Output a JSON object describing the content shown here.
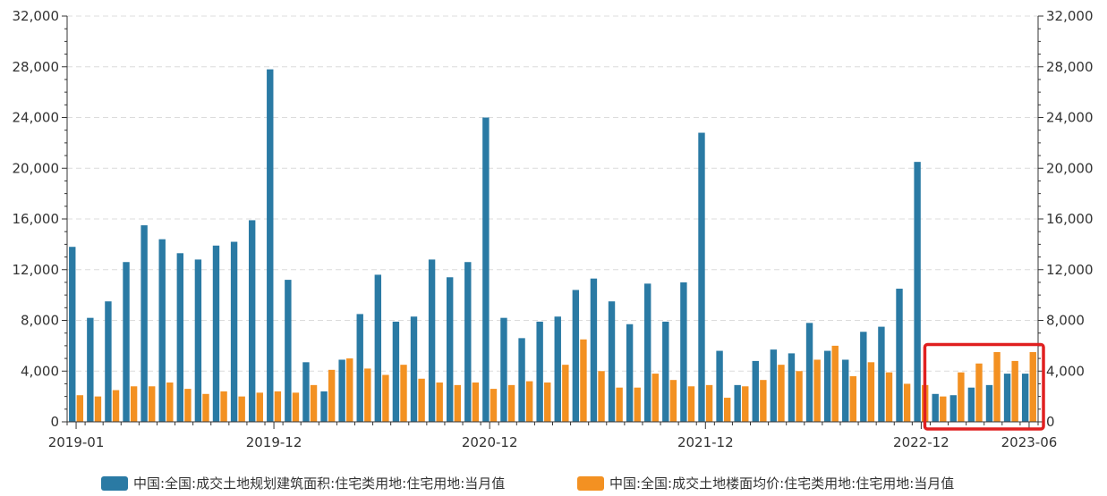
{
  "chart_data": {
    "type": "bar",
    "x_tick_labels": [
      "2019-01",
      "2019-12",
      "2020-12",
      "2021-12",
      "2022-12",
      "2023-06"
    ],
    "y_left_ticks": [
      "0",
      "4,000",
      "8,000",
      "12,000",
      "16,000",
      "20,000",
      "24,000",
      "28,000",
      "32,000"
    ],
    "y_right_ticks": [
      "0",
      "4,000",
      "8,000",
      "12,000",
      "16,000",
      "20,000",
      "24,000",
      "28,000",
      "32,000"
    ],
    "ylim": [
      0,
      32000
    ],
    "grid": true,
    "legend_position": "bottom",
    "series": [
      {
        "name": "中国:全国:成交土地规划建筑面积:住宅类用地:住宅用地:当月值",
        "color": "#2a7aa4",
        "values": [
          13800,
          8200,
          9500,
          12600,
          15500,
          14400,
          13300,
          12800,
          13900,
          14200,
          15900,
          27800,
          11200,
          4700,
          2400,
          4900,
          8500,
          11600,
          7900,
          8300,
          12800,
          11400,
          12600,
          24000,
          8200,
          6600,
          7900,
          8300,
          10400,
          11300,
          9500,
          7700,
          10900,
          7900,
          11000,
          22800,
          5600,
          2900,
          4800,
          5700,
          5400,
          7800,
          5600,
          4900,
          7100,
          7500,
          10500,
          20500,
          2200,
          2100,
          2700,
          2900,
          3800,
          3800
        ]
      },
      {
        "name": "中国:全国:成交土地楼面均价:住宅类用地:住宅用地:当月值",
        "color": "#f39122",
        "values": [
          2100,
          2000,
          2500,
          2800,
          2800,
          3100,
          2600,
          2200,
          2400,
          2000,
          2300,
          2400,
          2300,
          2900,
          4100,
          5000,
          4200,
          3700,
          4500,
          3400,
          3100,
          2900,
          3100,
          2600,
          2900,
          3200,
          3100,
          4500,
          6500,
          4000,
          2700,
          2700,
          3800,
          3300,
          2800,
          2900,
          1900,
          2800,
          3300,
          4500,
          4000,
          4900,
          6000,
          3600,
          4700,
          3900,
          3000,
          2900,
          2000,
          3900,
          4600,
          5500,
          4800,
          5500
        ]
      }
    ]
  },
  "highlight": {
    "color": "#e02020"
  }
}
